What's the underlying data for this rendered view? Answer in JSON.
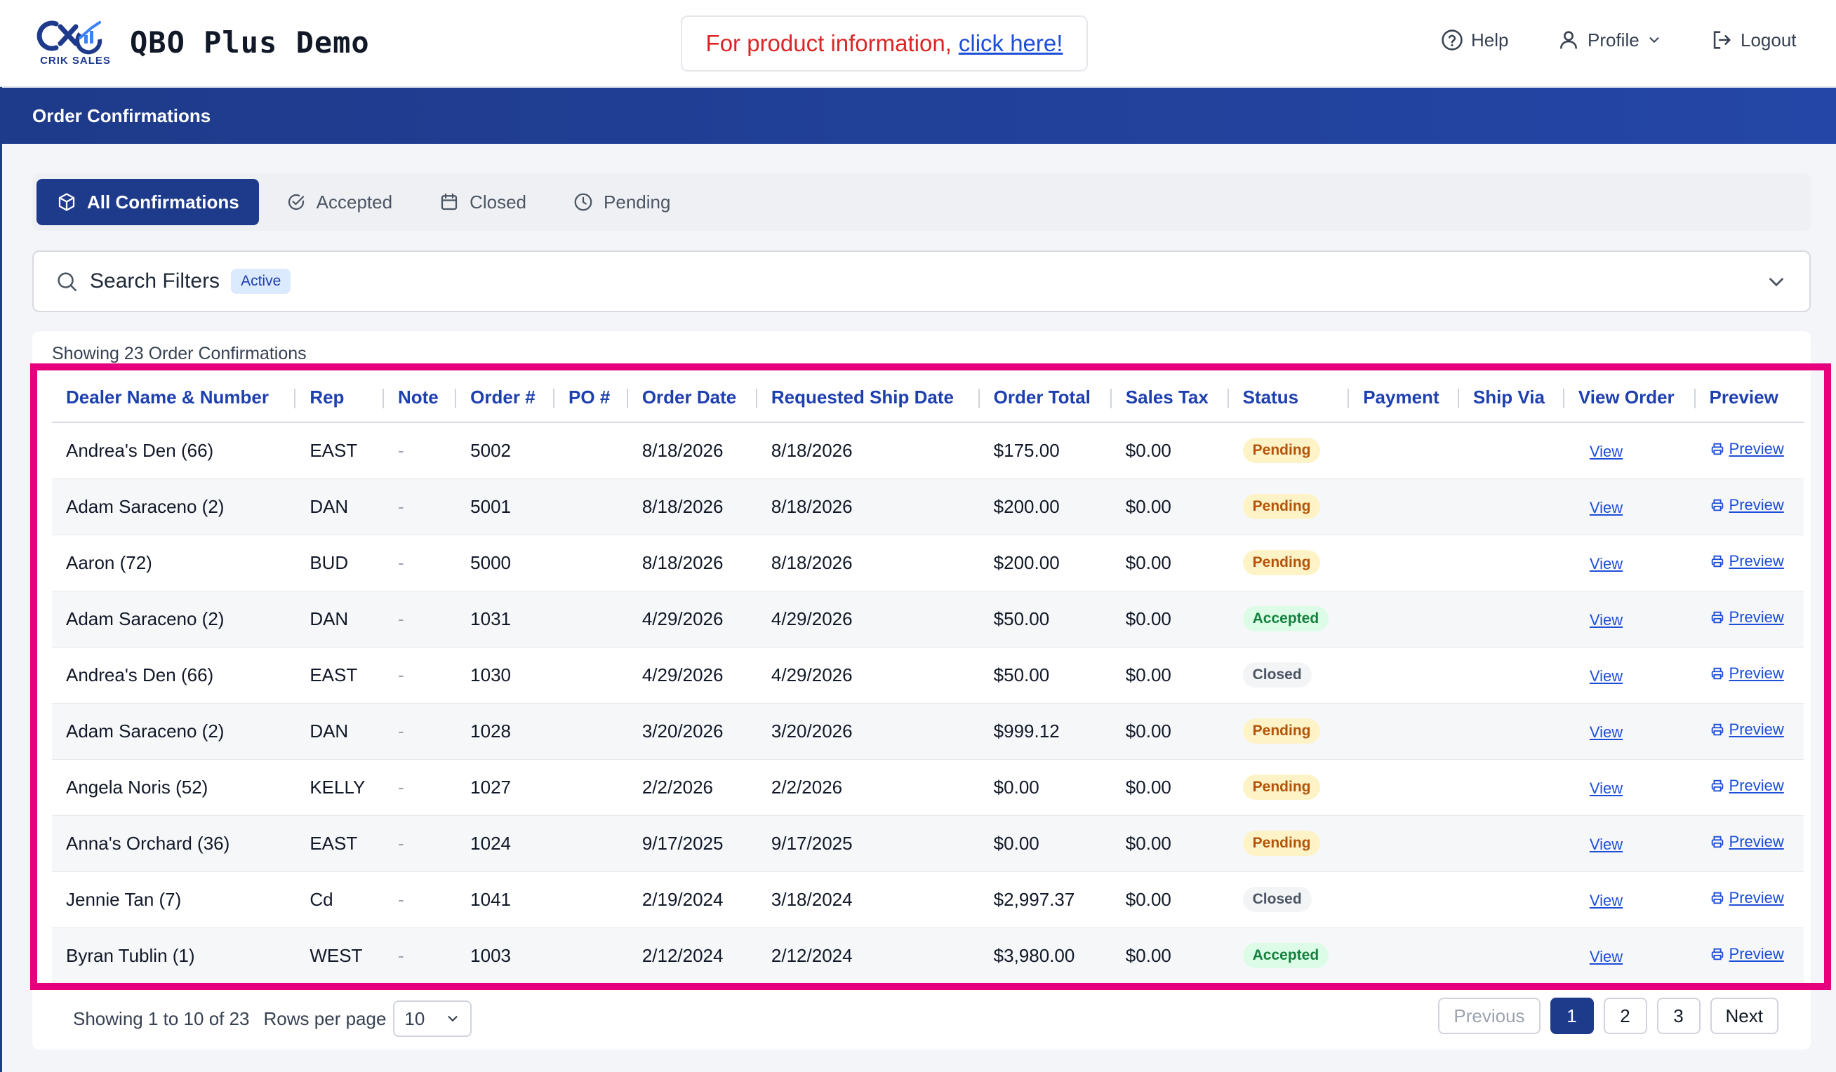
{
  "header": {
    "logo_text": "CRIK SALES",
    "app_title": "QBO Plus Demo",
    "promo_text": "For product information,",
    "promo_link": "click here!",
    "help": "Help",
    "profile": "Profile",
    "logout": "Logout"
  },
  "section": {
    "title": "Order Confirmations"
  },
  "tabs": [
    {
      "label": "All Confirmations",
      "icon": "box-icon",
      "active": true
    },
    {
      "label": "Accepted",
      "icon": "check-circle-icon"
    },
    {
      "label": "Closed",
      "icon": "calendar-icon"
    },
    {
      "label": "Pending",
      "icon": "clock-icon"
    }
  ],
  "filters": {
    "label": "Search Filters",
    "badge": "Active"
  },
  "summary": "Showing 23 Order Confirmations",
  "table": {
    "columns": [
      "Dealer Name & Number",
      "Rep",
      "Note",
      "Order #",
      "PO #",
      "Order Date",
      "Requested Ship Date",
      "Order Total",
      "Sales Tax",
      "Status",
      "Payment",
      "Ship Via",
      "View Order",
      "Preview"
    ],
    "view_label": "View",
    "preview_label": "Preview",
    "rows": [
      {
        "dealer": "Andrea's Den (66)",
        "rep": "EAST",
        "note": "-",
        "order": "5002",
        "po": "",
        "order_date": "8/18/2026",
        "ship_date": "8/18/2026",
        "total": "$175.00",
        "tax": "$0.00",
        "status": "Pending",
        "payment": "",
        "ship_via": ""
      },
      {
        "dealer": "Adam Saraceno (2)",
        "rep": "DAN",
        "note": "-",
        "order": "5001",
        "po": "",
        "order_date": "8/18/2026",
        "ship_date": "8/18/2026",
        "total": "$200.00",
        "tax": "$0.00",
        "status": "Pending",
        "payment": "",
        "ship_via": ""
      },
      {
        "dealer": "Aaron (72)",
        "rep": "BUD",
        "note": "-",
        "order": "5000",
        "po": "",
        "order_date": "8/18/2026",
        "ship_date": "8/18/2026",
        "total": "$200.00",
        "tax": "$0.00",
        "status": "Pending",
        "payment": "",
        "ship_via": ""
      },
      {
        "dealer": "Adam Saraceno (2)",
        "rep": "DAN",
        "note": "-",
        "order": "1031",
        "po": "",
        "order_date": "4/29/2026",
        "ship_date": "4/29/2026",
        "total": "$50.00",
        "tax": "$0.00",
        "status": "Accepted",
        "payment": "",
        "ship_via": ""
      },
      {
        "dealer": "Andrea's Den (66)",
        "rep": "EAST",
        "note": "-",
        "order": "1030",
        "po": "",
        "order_date": "4/29/2026",
        "ship_date": "4/29/2026",
        "total": "$50.00",
        "tax": "$0.00",
        "status": "Closed",
        "payment": "",
        "ship_via": ""
      },
      {
        "dealer": "Adam Saraceno (2)",
        "rep": "DAN",
        "note": "-",
        "order": "1028",
        "po": "",
        "order_date": "3/20/2026",
        "ship_date": "3/20/2026",
        "total": "$999.12",
        "tax": "$0.00",
        "status": "Pending",
        "payment": "",
        "ship_via": ""
      },
      {
        "dealer": "Angela Noris (52)",
        "rep": "KELLY",
        "note": "-",
        "order": "1027",
        "po": "",
        "order_date": "2/2/2026",
        "ship_date": "2/2/2026",
        "total": "$0.00",
        "tax": "$0.00",
        "status": "Pending",
        "payment": "",
        "ship_via": ""
      },
      {
        "dealer": "Anna's Orchard (36)",
        "rep": "EAST",
        "note": "-",
        "order": "1024",
        "po": "",
        "order_date": "9/17/2025",
        "ship_date": "9/17/2025",
        "total": "$0.00",
        "tax": "$0.00",
        "status": "Pending",
        "payment": "",
        "ship_via": ""
      },
      {
        "dealer": "Jennie Tan (7)",
        "rep": "Cd",
        "note": "-",
        "order": "1041",
        "po": "",
        "order_date": "2/19/2024",
        "ship_date": "3/18/2024",
        "total": "$2,997.37",
        "tax": "$0.00",
        "status": "Closed",
        "payment": "",
        "ship_via": ""
      },
      {
        "dealer": "Byran Tublin (1)",
        "rep": "WEST",
        "note": "-",
        "order": "1003",
        "po": "",
        "order_date": "2/12/2024",
        "ship_date": "2/12/2024",
        "total": "$3,980.00",
        "tax": "$0.00",
        "status": "Accepted",
        "payment": "",
        "ship_via": ""
      }
    ]
  },
  "pagination": {
    "showing": "Showing 1 to 10 of 23",
    "rows_label": "Rows per page",
    "rows_value": "10",
    "previous": "Previous",
    "pages": [
      "1",
      "2",
      "3"
    ],
    "current_page": "1",
    "next": "Next"
  },
  "colors": {
    "brand": "#1e3a8a",
    "highlight": "#e6007e",
    "link": "#1d4ed8",
    "promo_text": "#dc2626"
  }
}
